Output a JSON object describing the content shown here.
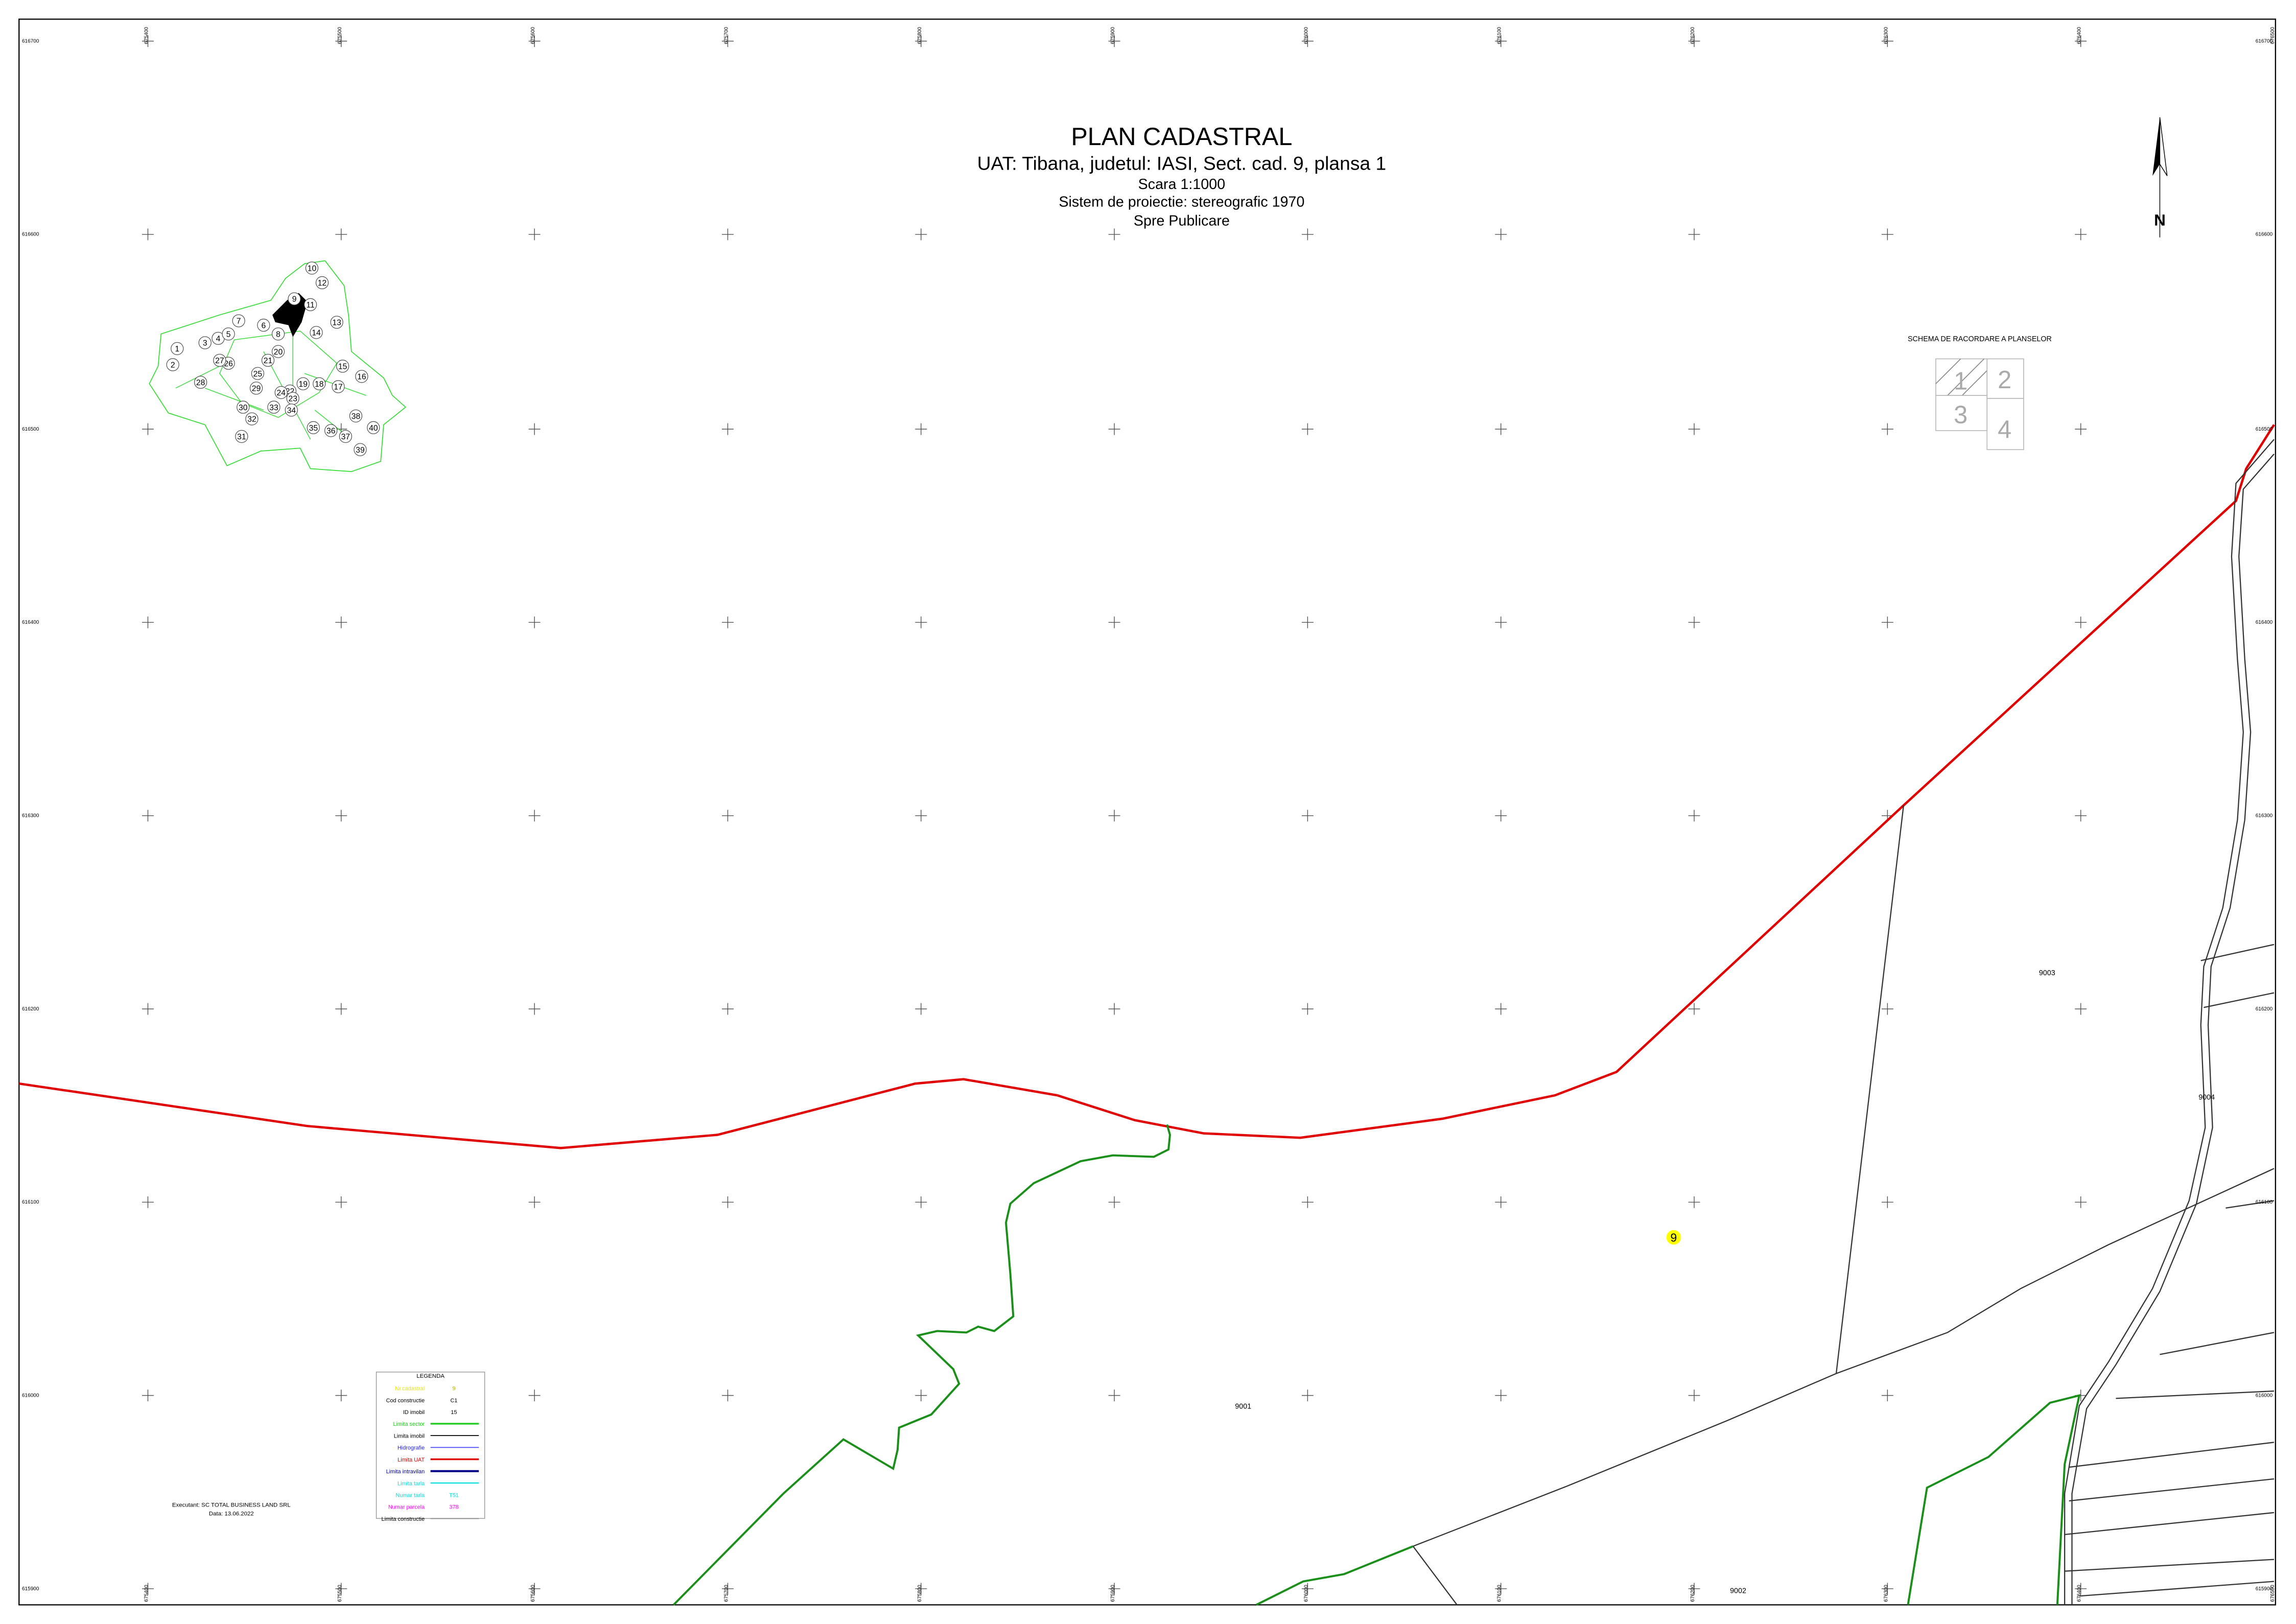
{
  "header": {
    "title": "PLAN CADASTRAL",
    "subtitle": "UAT: Tibana, judetul: IASI, Sect. cad. 9, plansa 1",
    "scale": "Scara 1:1000",
    "projection": "Sistem de proiectie: stereografic 1970",
    "status": "Spre Publicare"
  },
  "north": "N",
  "grid": {
    "x_labels": [
      "675400",
      "675500",
      "675600",
      "675700",
      "675800",
      "675900",
      "676000",
      "676100",
      "676200",
      "676300",
      "676400",
      "676500"
    ],
    "y_labels": [
      "616700",
      "616600",
      "616500",
      "616400",
      "616300",
      "616200",
      "616100",
      "616000",
      "615900"
    ]
  },
  "parcels": {
    "sector": "9",
    "labels": [
      "9001",
      "9002",
      "9003",
      "9004"
    ]
  },
  "inset": {
    "numbers": [
      "1",
      "2",
      "3",
      "4",
      "5",
      "6",
      "7",
      "8",
      "9",
      "10",
      "11",
      "12",
      "13",
      "14",
      "15",
      "16",
      "17",
      "18",
      "19",
      "20",
      "21",
      "22",
      "23",
      "24",
      "25",
      "26",
      "27",
      "28",
      "29",
      "30",
      "31",
      "32",
      "33",
      "34",
      "35",
      "36",
      "37",
      "38",
      "39",
      "40"
    ]
  },
  "schema": {
    "title": "SCHEMA DE RACORDARE A PLANSELOR",
    "sheets": [
      "1",
      "2",
      "3",
      "4"
    ]
  },
  "legend": {
    "title": "LEGENDA",
    "rows": [
      {
        "label": "Nr.cadastral",
        "sample": "9"
      },
      {
        "label": "Cod constructie",
        "sample": "C1"
      },
      {
        "label": "ID imobil",
        "sample": "15"
      },
      {
        "label": "Limita sector"
      },
      {
        "label": "Limita imobil"
      },
      {
        "label": "Hidrografie"
      },
      {
        "label": "Limita UAT"
      },
      {
        "label": "Limita intravilan"
      },
      {
        "label": "Limita tarla"
      },
      {
        "label": "Numar tarla",
        "sample": "T51"
      },
      {
        "label": "Numar parcela",
        "sample": "378"
      },
      {
        "label": "Limita constructie"
      }
    ]
  },
  "footer": {
    "executant": "Executant: SC TOTAL BUSINESS LAND SRL",
    "date": "Data: 13.06.2022"
  }
}
